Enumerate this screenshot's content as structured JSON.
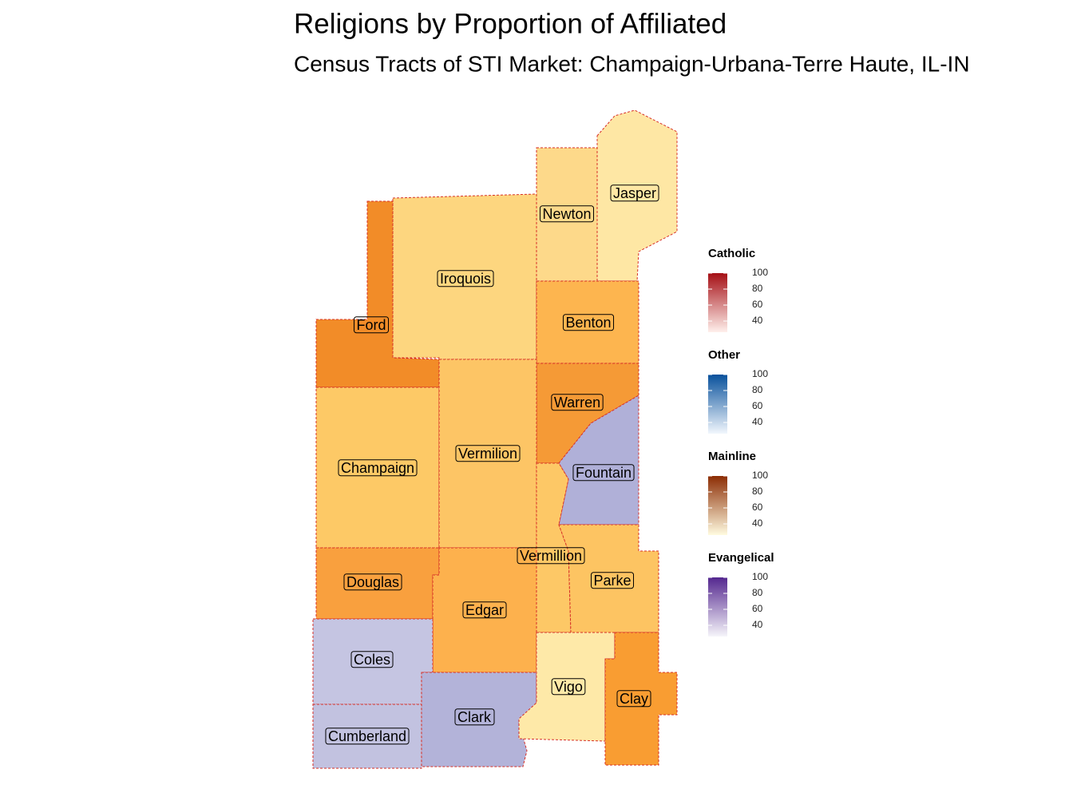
{
  "title": "Religions by Proportion of Affiliated",
  "subtitle": "Census Tracts of STI Market: Champaign-Urbana-Terre Haute, IL-IN",
  "counties": [
    {
      "name": "Jasper",
      "color": "#fee7a4"
    },
    {
      "name": "Newton",
      "color": "#fdd98a"
    },
    {
      "name": "Iroquois",
      "color": "#fdd67f"
    },
    {
      "name": "Ford",
      "color": "#f28c28"
    },
    {
      "name": "Benton",
      "color": "#fdb54f"
    },
    {
      "name": "Warren",
      "color": "#f59a36"
    },
    {
      "name": "Fountain",
      "color": "#b0b0d8"
    },
    {
      "name": "Champaign",
      "color": "#fdc966"
    },
    {
      "name": "Vermilion",
      "color": "#fdc565"
    },
    {
      "name": "Vermillion",
      "color": "#fdc866"
    },
    {
      "name": "Parke",
      "color": "#fdc462"
    },
    {
      "name": "Douglas",
      "color": "#f9a03e"
    },
    {
      "name": "Edgar",
      "color": "#fdb14d"
    },
    {
      "name": "Coles",
      "color": "#c5c5e2"
    },
    {
      "name": "Cumberland",
      "color": "#c2c2e0"
    },
    {
      "name": "Clark",
      "color": "#b3b3d9"
    },
    {
      "name": "Vigo",
      "color": "#fee9a8"
    },
    {
      "name": "Clay",
      "color": "#f99d32"
    }
  ],
  "legend": [
    {
      "title": "Catholic",
      "colors": [
        "#fff0ec",
        "#a50f15"
      ],
      "range": [
        26,
        100
      ],
      "ticks": [
        40,
        60,
        80,
        100
      ]
    },
    {
      "title": "Other",
      "colors": [
        "#f2f7fd",
        "#08519c"
      ],
      "range": [
        26,
        100
      ],
      "ticks": [
        40,
        60,
        80,
        100
      ]
    },
    {
      "title": "Mainline",
      "colors": [
        "#fffbe0",
        "#8c2d04"
      ],
      "range": [
        26,
        100
      ],
      "ticks": [
        40,
        60,
        80,
        100
      ]
    },
    {
      "title": "Evangelical",
      "colors": [
        "#f6f5fa",
        "#54278f"
      ],
      "range": [
        26,
        100
      ],
      "ticks": [
        40,
        60,
        80,
        100
      ]
    }
  ]
}
